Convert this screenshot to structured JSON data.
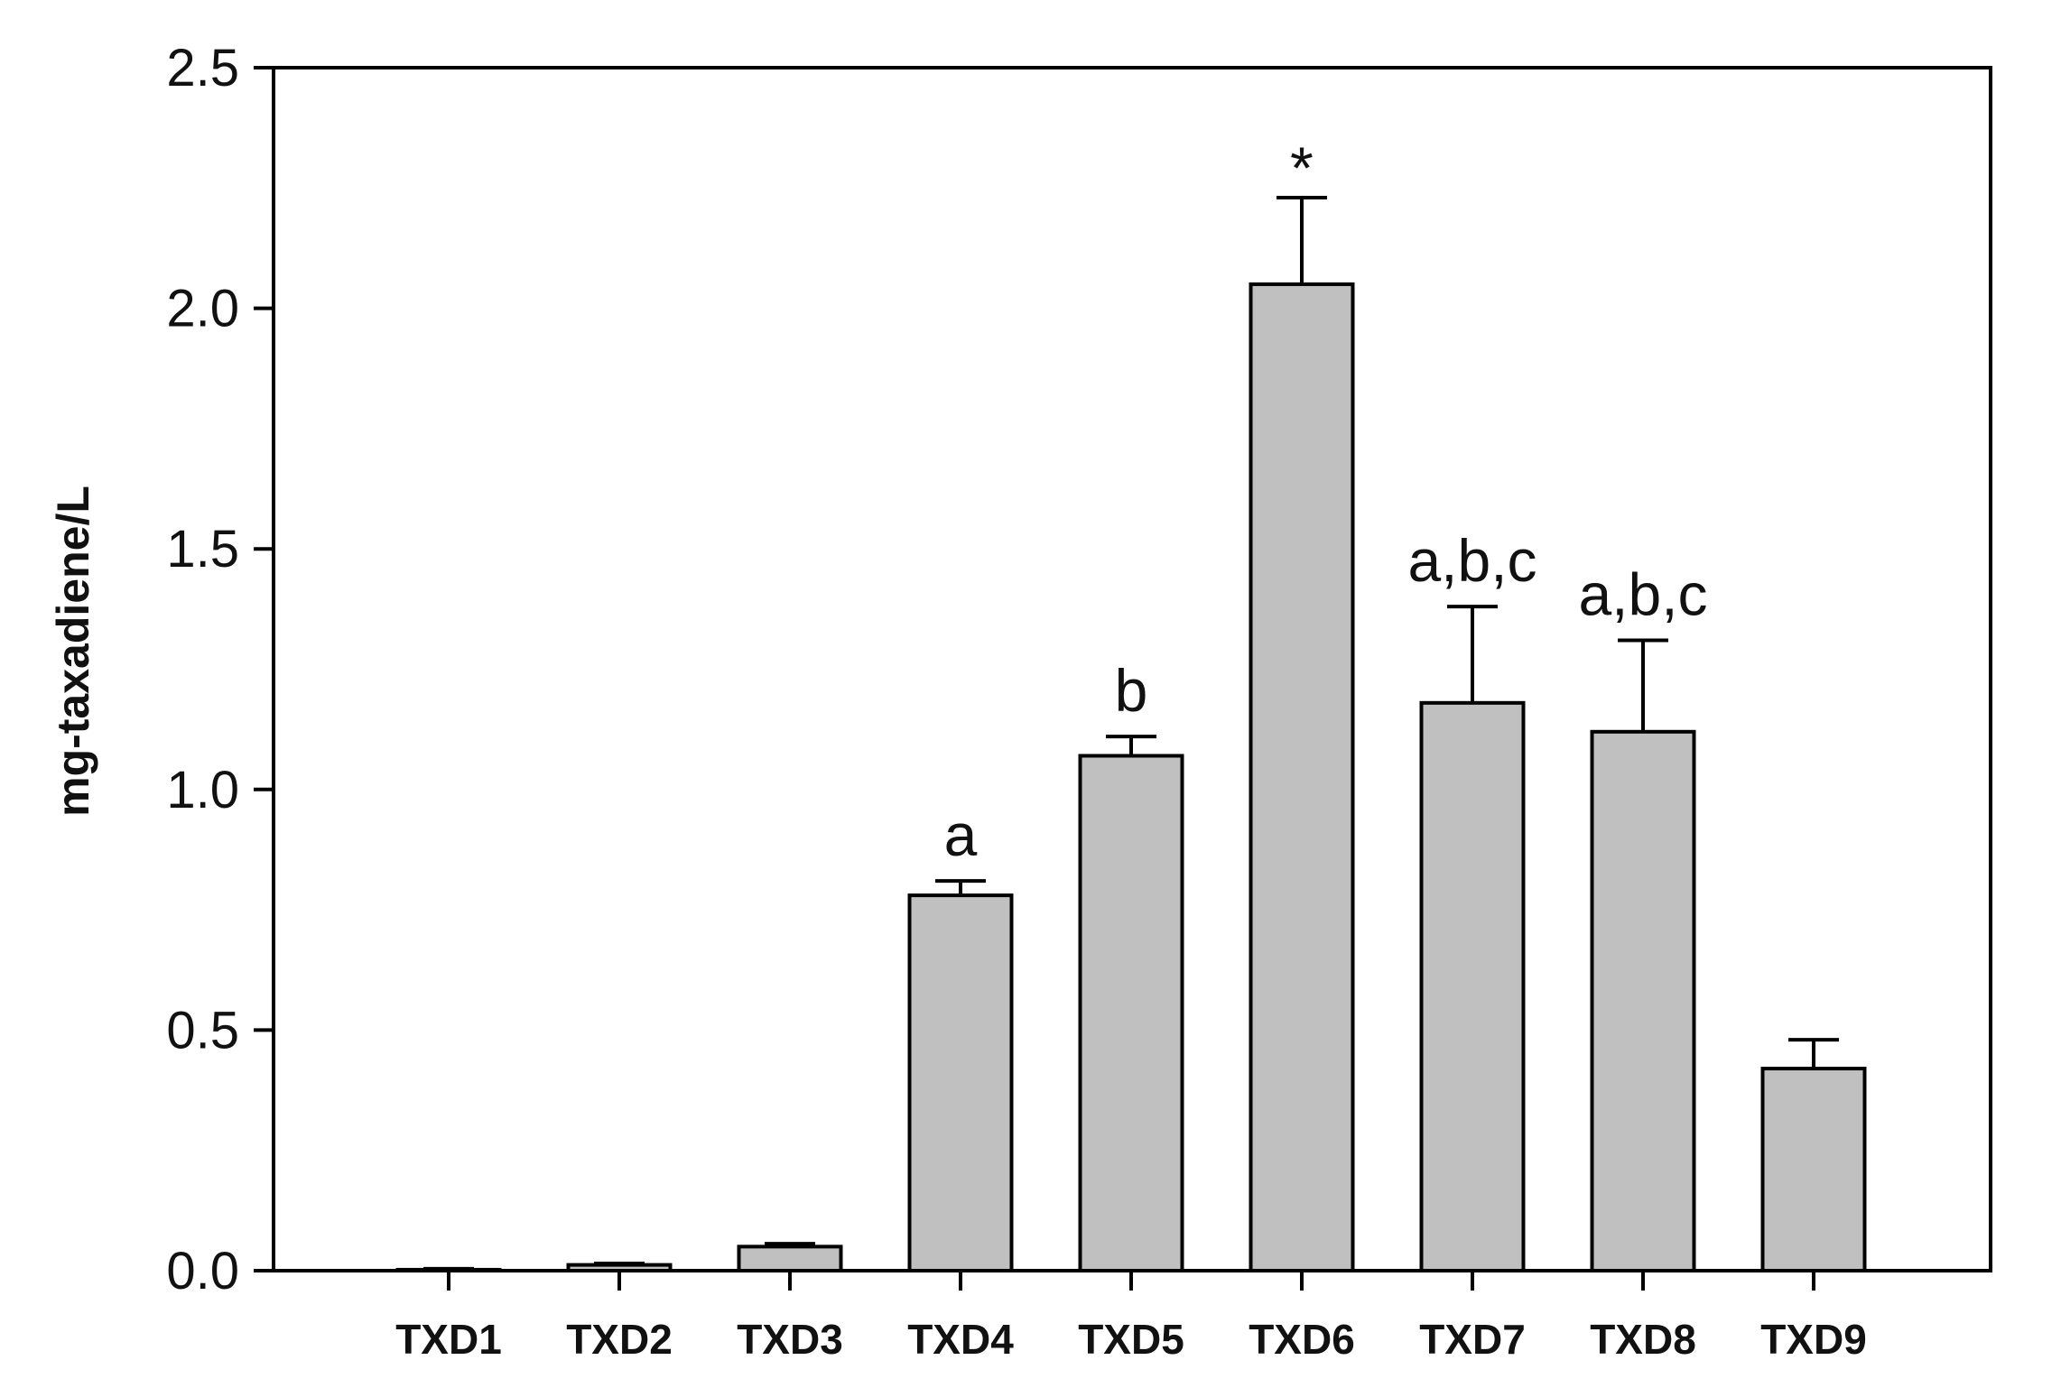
{
  "colors": {
    "bar_fill": "#c0c0c0",
    "bar_stroke": "#000000",
    "axis": "#000000"
  },
  "chart_data": {
    "type": "bar",
    "title": "",
    "xlabel": "",
    "ylabel": "mg-taxadiene/L",
    "ylim": [
      0,
      2.5
    ],
    "yticks": [
      "0.0",
      "0.5",
      "1.0",
      "1.5",
      "2.0",
      "2.5"
    ],
    "grid": false,
    "legend": "none",
    "categories": [
      "TXD1",
      "TXD2",
      "TXD3",
      "TXD4",
      "TXD5",
      "TXD6",
      "TXD7",
      "TXD8",
      "TXD9"
    ],
    "values": [
      0.002,
      0.012,
      0.05,
      0.78,
      1.07,
      2.05,
      1.18,
      1.12,
      0.42
    ],
    "errors": [
      0.002,
      0.003,
      0.006,
      0.03,
      0.04,
      0.18,
      0.2,
      0.19,
      0.06
    ],
    "annotations": [
      "",
      "",
      "",
      "a",
      "b",
      "*",
      "a,b,c",
      "a,b,c",
      ""
    ]
  }
}
